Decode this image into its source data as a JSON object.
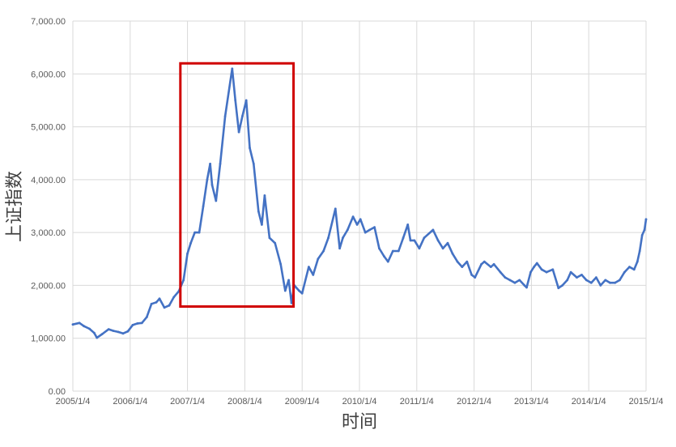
{
  "chart_data": {
    "type": "line",
    "title": "",
    "xlabel": "时间",
    "ylabel": "上证指数",
    "x_tick_labels": [
      "2005/1/4",
      "2006/1/4",
      "2007/1/4",
      "2008/1/4",
      "2009/1/4",
      "2010/1/4",
      "2011/1/4",
      "2012/1/4",
      "2013/1/4",
      "2014/1/4",
      "2015/1/4"
    ],
    "y_tick_labels": [
      "0.00",
      "1,000.00",
      "2,000.00",
      "3,000.00",
      "4,000.00",
      "5,000.00",
      "6,000.00",
      "7,000.00"
    ],
    "xlim": [
      "2005-01-04",
      "2015-01-04"
    ],
    "ylim": [
      0,
      7000
    ],
    "grid": true,
    "series": [
      {
        "color": "#4472C4",
        "points": [
          [
            "2005-01-04",
            1260
          ],
          [
            "2005-02-15",
            1290
          ],
          [
            "2005-03-15",
            1230
          ],
          [
            "2005-04-20",
            1180
          ],
          [
            "2005-05-20",
            1100
          ],
          [
            "2005-06-06",
            1010
          ],
          [
            "2005-07-10",
            1080
          ],
          [
            "2005-08-20",
            1170
          ],
          [
            "2005-09-20",
            1140
          ],
          [
            "2005-10-20",
            1120
          ],
          [
            "2005-11-20",
            1090
          ],
          [
            "2005-12-20",
            1130
          ],
          [
            "2006-01-20",
            1250
          ],
          [
            "2006-02-20",
            1280
          ],
          [
            "2006-03-20",
            1290
          ],
          [
            "2006-04-20",
            1400
          ],
          [
            "2006-05-20",
            1650
          ],
          [
            "2006-06-20",
            1680
          ],
          [
            "2006-07-10",
            1750
          ],
          [
            "2006-08-10",
            1580
          ],
          [
            "2006-09-10",
            1620
          ],
          [
            "2006-10-10",
            1780
          ],
          [
            "2006-11-10",
            1890
          ],
          [
            "2006-12-10",
            2100
          ],
          [
            "2007-01-04",
            2600
          ],
          [
            "2007-01-25",
            2800
          ],
          [
            "2007-02-20",
            3000
          ],
          [
            "2007-03-20",
            3000
          ],
          [
            "2007-04-15",
            3500
          ],
          [
            "2007-05-10",
            4000
          ],
          [
            "2007-05-29",
            4300
          ],
          [
            "2007-06-10",
            3900
          ],
          [
            "2007-07-05",
            3600
          ],
          [
            "2007-08-01",
            4300
          ],
          [
            "2007-09-01",
            5200
          ],
          [
            "2007-10-16",
            6100
          ],
          [
            "2007-11-05",
            5500
          ],
          [
            "2007-11-28",
            4900
          ],
          [
            "2007-12-20",
            5200
          ],
          [
            "2008-01-14",
            5500
          ],
          [
            "2008-02-05",
            4600
          ],
          [
            "2008-03-01",
            4300
          ],
          [
            "2008-04-01",
            3400
          ],
          [
            "2008-04-22",
            3150
          ],
          [
            "2008-05-10",
            3700
          ],
          [
            "2008-06-10",
            2900
          ],
          [
            "2008-07-15",
            2800
          ],
          [
            "2008-08-20",
            2400
          ],
          [
            "2008-09-18",
            1900
          ],
          [
            "2008-10-10",
            2100
          ],
          [
            "2008-10-28",
            1665
          ],
          [
            "2008-11-15",
            2000
          ],
          [
            "2008-12-15",
            1900
          ],
          [
            "2009-01-04",
            1850
          ],
          [
            "2009-02-15",
            2350
          ],
          [
            "2009-03-15",
            2200
          ],
          [
            "2009-04-15",
            2500
          ],
          [
            "2009-05-20",
            2650
          ],
          [
            "2009-06-20",
            2900
          ],
          [
            "2009-08-04",
            3450
          ],
          [
            "2009-08-31",
            2700
          ],
          [
            "2009-09-20",
            2900
          ],
          [
            "2009-10-20",
            3050
          ],
          [
            "2009-11-24",
            3300
          ],
          [
            "2009-12-20",
            3150
          ],
          [
            "2010-01-10",
            3250
          ],
          [
            "2010-02-10",
            3000
          ],
          [
            "2010-03-10",
            3050
          ],
          [
            "2010-04-10",
            3100
          ],
          [
            "2010-05-10",
            2700
          ],
          [
            "2010-06-10",
            2550
          ],
          [
            "2010-07-05",
            2450
          ],
          [
            "2010-08-05",
            2650
          ],
          [
            "2010-09-10",
            2650
          ],
          [
            "2010-10-10",
            2900
          ],
          [
            "2010-11-08",
            3150
          ],
          [
            "2010-11-25",
            2850
          ],
          [
            "2010-12-20",
            2850
          ],
          [
            "2011-01-20",
            2700
          ],
          [
            "2011-02-20",
            2900
          ],
          [
            "2011-04-18",
            3050
          ],
          [
            "2011-05-20",
            2850
          ],
          [
            "2011-06-20",
            2700
          ],
          [
            "2011-07-20",
            2800
          ],
          [
            "2011-08-20",
            2600
          ],
          [
            "2011-09-20",
            2450
          ],
          [
            "2011-10-20",
            2350
          ],
          [
            "2011-11-20",
            2450
          ],
          [
            "2011-12-20",
            2200
          ],
          [
            "2012-01-10",
            2150
          ],
          [
            "2012-02-20",
            2400
          ],
          [
            "2012-03-10",
            2450
          ],
          [
            "2012-04-20",
            2350
          ],
          [
            "2012-05-10",
            2400
          ],
          [
            "2012-06-20",
            2250
          ],
          [
            "2012-07-20",
            2150
          ],
          [
            "2012-08-20",
            2100
          ],
          [
            "2012-09-20",
            2050
          ],
          [
            "2012-10-20",
            2100
          ],
          [
            "2012-11-20",
            2000
          ],
          [
            "2012-12-04",
            1960
          ],
          [
            "2012-12-30",
            2250
          ],
          [
            "2013-01-20",
            2350
          ],
          [
            "2013-02-08",
            2420
          ],
          [
            "2013-03-10",
            2300
          ],
          [
            "2013-04-10",
            2250
          ],
          [
            "2013-05-20",
            2300
          ],
          [
            "2013-06-25",
            1950
          ],
          [
            "2013-07-20",
            2000
          ],
          [
            "2013-08-20",
            2100
          ],
          [
            "2013-09-12",
            2250
          ],
          [
            "2013-10-20",
            2150
          ],
          [
            "2013-11-20",
            2200
          ],
          [
            "2013-12-20",
            2100
          ],
          [
            "2014-01-20",
            2050
          ],
          [
            "2014-02-20",
            2150
          ],
          [
            "2014-03-20",
            2000
          ],
          [
            "2014-04-20",
            2100
          ],
          [
            "2014-05-20",
            2050
          ],
          [
            "2014-06-20",
            2050
          ],
          [
            "2014-07-20",
            2100
          ],
          [
            "2014-08-20",
            2250
          ],
          [
            "2014-09-20",
            2350
          ],
          [
            "2014-10-20",
            2300
          ],
          [
            "2014-11-10",
            2450
          ],
          [
            "2014-11-25",
            2650
          ],
          [
            "2014-12-10",
            2950
          ],
          [
            "2014-12-25",
            3050
          ],
          [
            "2015-01-04",
            3250
          ]
        ]
      }
    ],
    "highlight_box": {
      "color": "#D00000",
      "x_range": [
        "2006-11-20",
        "2008-11-10"
      ],
      "y_range": [
        1600,
        6200
      ]
    }
  }
}
